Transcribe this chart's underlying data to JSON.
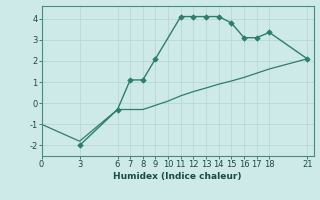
{
  "xlabel": "Humidex (Indice chaleur)",
  "x_values": [
    3,
    6,
    7,
    8,
    9,
    11,
    12,
    13,
    14,
    15,
    16,
    17,
    18,
    21
  ],
  "y_values": [
    -2.0,
    -0.3,
    1.1,
    1.1,
    2.1,
    4.1,
    4.1,
    4.1,
    4.1,
    3.8,
    3.1,
    3.1,
    3.35,
    2.1
  ],
  "x2_values": [
    0,
    3,
    6,
    7,
    8,
    9,
    10,
    11,
    12,
    13,
    14,
    15,
    16,
    17,
    18,
    21
  ],
  "y2_values": [
    -1.0,
    -1.8,
    -0.3,
    -0.3,
    -0.3,
    -0.1,
    0.1,
    0.35,
    0.55,
    0.72,
    0.9,
    1.05,
    1.22,
    1.42,
    1.62,
    2.1
  ],
  "line_color": "#2d7d6e",
  "bg_color": "#ceeae8",
  "grid_color": "#b8d8d5",
  "xlim": [
    0,
    21.5
  ],
  "ylim": [
    -2.5,
    4.6
  ],
  "xticks": [
    0,
    3,
    6,
    7,
    8,
    9,
    10,
    11,
    12,
    13,
    14,
    15,
    16,
    17,
    18,
    21
  ],
  "yticks": [
    -2,
    -1,
    0,
    1,
    2,
    3,
    4
  ],
  "marker": "D",
  "markersize": 2.8,
  "tick_fontsize": 6.0,
  "xlabel_fontsize": 6.5
}
